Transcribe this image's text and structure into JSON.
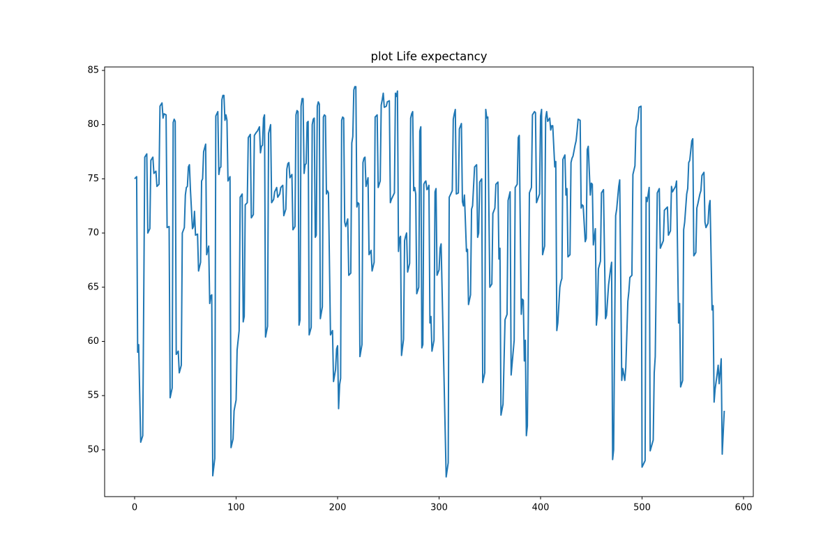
{
  "chart_data": {
    "type": "line",
    "title": "plot Life expectancy",
    "x": [
      0,
      2,
      3,
      4,
      6,
      8,
      10,
      12,
      13,
      15,
      16,
      18,
      19,
      21,
      22,
      24,
      25,
      27,
      28,
      29,
      31,
      32,
      34,
      35,
      37,
      38,
      39,
      40,
      41,
      43,
      44,
      46,
      47,
      49,
      50,
      51,
      52,
      53,
      54,
      55,
      57,
      58,
      59,
      60,
      62,
      63,
      65,
      66,
      67,
      68,
      70,
      71,
      73,
      74,
      75,
      76,
      77,
      79,
      80,
      82,
      83,
      84,
      85,
      86,
      87,
      88,
      89,
      90,
      91,
      92,
      94,
      95,
      97,
      98,
      100,
      101,
      103,
      104,
      106,
      107,
      108,
      109,
      111,
      112,
      114,
      115,
      117,
      118,
      120,
      121,
      123,
      124,
      125,
      126,
      127,
      128,
      129,
      131,
      132,
      134,
      135,
      137,
      138,
      140,
      141,
      143,
      144,
      146,
      147,
      149,
      150,
      151,
      152,
      153,
      155,
      156,
      158,
      159,
      160,
      161,
      162,
      163,
      164,
      165,
      166,
      167,
      168,
      169,
      170,
      171,
      172,
      174,
      175,
      176,
      177,
      178,
      179,
      180,
      181,
      182,
      183,
      185,
      186,
      187,
      188,
      189,
      190,
      191,
      193,
      195,
      196,
      198,
      199,
      200,
      201,
      202,
      203,
      204,
      205,
      206,
      207,
      208,
      210,
      211,
      213,
      214,
      215,
      216,
      217,
      218,
      219,
      220,
      221,
      222,
      224,
      225,
      226,
      227,
      228,
      230,
      231,
      233,
      234,
      236,
      237,
      239,
      240,
      242,
      243,
      244,
      245,
      246,
      248,
      249,
      251,
      252,
      253,
      254,
      256,
      257,
      258,
      259,
      260,
      261,
      262,
      263,
      265,
      266,
      267,
      268,
      269,
      271,
      272,
      273,
      274,
      275,
      276,
      277,
      278,
      280,
      281,
      282,
      283,
      284,
      285,
      286,
      287,
      288,
      289,
      290,
      291,
      292,
      293,
      295,
      296,
      297,
      298,
      300,
      301,
      302,
      307,
      309,
      310,
      313,
      314,
      315,
      316,
      317,
      319,
      320,
      322,
      323,
      324,
      325,
      327,
      328,
      329,
      331,
      332,
      333,
      335,
      337,
      338,
      339,
      340,
      342,
      343,
      345,
      346,
      347,
      348,
      350,
      352,
      353,
      355,
      356,
      358,
      359,
      360,
      361,
      363,
      365,
      367,
      368,
      370,
      371,
      374,
      375,
      377,
      378,
      379,
      381,
      382,
      383,
      384,
      385,
      386,
      387,
      389,
      391,
      392,
      394,
      395,
      396,
      399,
      400,
      401,
      402,
      404,
      405,
      406,
      407,
      409,
      410,
      411,
      412,
      414,
      415,
      416,
      417,
      419,
      420,
      421,
      422,
      424,
      425,
      426,
      427,
      429,
      430,
      431,
      432,
      434,
      435,
      436,
      437,
      439,
      440,
      441,
      442,
      444,
      445,
      446,
      447,
      449,
      450,
      451,
      452,
      454,
      455,
      456,
      457,
      459,
      460,
      462,
      464,
      465,
      466,
      467,
      469,
      470,
      471,
      472,
      474,
      475,
      477,
      478,
      480,
      481,
      483,
      484,
      486,
      487,
      488,
      490,
      491,
      493,
      494,
      496,
      497,
      499,
      500,
      503,
      504,
      505,
      507,
      508,
      511,
      512,
      513,
      515,
      517,
      518,
      521,
      522,
      525,
      526,
      528,
      529,
      530,
      533,
      534,
      536,
      537,
      538,
      540,
      541,
      542,
      544,
      545,
      546,
      547,
      549,
      550,
      551,
      553,
      554,
      555,
      557,
      558,
      559,
      561,
      562,
      563,
      565,
      566,
      567,
      569,
      570,
      571,
      572,
      574,
      575,
      576,
      578,
      579,
      581
    ],
    "values": [
      75.0,
      75.2,
      59.0,
      59.7,
      50.7,
      51.3,
      77.0,
      77.3,
      70.0,
      70.4,
      76.7,
      77.0,
      75.5,
      75.7,
      74.3,
      74.5,
      81.7,
      82.0,
      80.6,
      81.0,
      80.9,
      70.5,
      70.6,
      54.8,
      55.7,
      80.2,
      80.5,
      80.3,
      58.8,
      59.1,
      57.1,
      57.8,
      70.0,
      70.5,
      73.5,
      74.2,
      74.3,
      76.1,
      76.3,
      74.0,
      70.4,
      70.6,
      72.0,
      69.8,
      69.9,
      66.5,
      67.3,
      74.8,
      75.0,
      77.5,
      78.2,
      68.0,
      68.8,
      63.5,
      64.2,
      64.3,
      47.6,
      49.2,
      80.8,
      81.2,
      75.4,
      76.0,
      76.1,
      82.3,
      82.7,
      82.7,
      80.4,
      80.9,
      80.4,
      74.8,
      75.2,
      50.2,
      51.0,
      53.6,
      54.6,
      59.2,
      61.0,
      73.3,
      73.6,
      61.8,
      62.3,
      72.6,
      72.8,
      78.8,
      79.1,
      71.4,
      71.7,
      79.0,
      79.3,
      79.4,
      79.8,
      77.4,
      78.0,
      78.1,
      80.6,
      80.9,
      60.4,
      61.4,
      79.2,
      80.0,
      72.8,
      73.1,
      73.8,
      74.2,
      73.3,
      73.6,
      74.2,
      74.4,
      71.6,
      72.2,
      75.9,
      76.4,
      76.5,
      75.1,
      75.4,
      70.3,
      70.6,
      80.9,
      81.3,
      81.2,
      61.5,
      62.0,
      81.7,
      82.4,
      82.4,
      75.5,
      76.3,
      76.4,
      80.2,
      80.3,
      60.6,
      61.3,
      80.0,
      80.5,
      80.6,
      69.6,
      69.8,
      81.7,
      82.1,
      81.9,
      62.1,
      63.2,
      80.7,
      80.9,
      80.8,
      73.6,
      73.9,
      73.7,
      60.6,
      61.0,
      56.3,
      57.4,
      59.3,
      59.6,
      53.8,
      56.0,
      56.6,
      80.4,
      80.7,
      80.6,
      71.0,
      70.6,
      71.3,
      66.1,
      66.3,
      78.3,
      78.9,
      83.2,
      83.5,
      83.5,
      72.4,
      72.8,
      72.7,
      58.6,
      59.7,
      76.5,
      76.9,
      77.0,
      74.3,
      75.1,
      68.0,
      68.4,
      66.5,
      67.3,
      80.7,
      80.9,
      74.2,
      74.8,
      81.8,
      82.3,
      82.9,
      81.6,
      81.7,
      82.1,
      82.2,
      72.8,
      73.1,
      73.3,
      73.7,
      82.9,
      82.6,
      83.1,
      68.3,
      69.5,
      69.7,
      58.7,
      60.2,
      69.3,
      69.7,
      70.0,
      66.4,
      67.2,
      80.6,
      81.0,
      81.2,
      73.9,
      74.2,
      73.6,
      64.4,
      65.0,
      79.4,
      79.8,
      59.4,
      59.7,
      74.5,
      74.7,
      74.8,
      74.0,
      74.1,
      74.4,
      61.7,
      62.3,
      59.1,
      60.1,
      73.8,
      74.1,
      66.1,
      66.6,
      68.6,
      69.0,
      47.5,
      48.8,
      73.3,
      73.9,
      80.5,
      81.0,
      81.4,
      73.6,
      73.7,
      79.6,
      80.1,
      72.9,
      72.5,
      73.5,
      68.3,
      68.5,
      63.4,
      64.3,
      72.2,
      72.5,
      76.1,
      76.3,
      69.6,
      70.0,
      74.7,
      75.0,
      56.2,
      57.1,
      81.4,
      80.6,
      80.7,
      65.0,
      65.3,
      71.8,
      72.3,
      74.5,
      74.7,
      67.6,
      68.6,
      53.2,
      54.2,
      62.0,
      62.5,
      73.0,
      73.8,
      56.9,
      60.1,
      74.2,
      74.5,
      78.8,
      79.0,
      62.5,
      63.9,
      63.8,
      58.2,
      60.1,
      51.3,
      52.2,
      73.7,
      74.2,
      80.9,
      81.2,
      81.1,
      72.8,
      73.6,
      80.8,
      81.4,
      68.0,
      68.8,
      80.6,
      81.2,
      80.3,
      80.6,
      79.5,
      79.9,
      79.9,
      76.1,
      76.6,
      61.0,
      61.7,
      65.0,
      65.5,
      65.8,
      76.8,
      77.2,
      73.5,
      74.1,
      67.8,
      68.0,
      76.5,
      76.9,
      77.1,
      78.1,
      78.5,
      79.4,
      80.5,
      80.4,
      72.3,
      72.6,
      72.5,
      69.2,
      69.5,
      77.7,
      78.0,
      73.5,
      74.6,
      74.5,
      68.9,
      70.4,
      61.5,
      62.5,
      66.7,
      67.4,
      73.7,
      74.0,
      62.1,
      62.4,
      63.8,
      65.2,
      66.7,
      67.3,
      49.1,
      50.0,
      71.6,
      72.2,
      74.3,
      74.9,
      56.4,
      57.5,
      56.4,
      57.6,
      63.7,
      64.6,
      65.9,
      66.1,
      75.4,
      76.2,
      79.7,
      80.5,
      81.6,
      81.7,
      48.4,
      49.0,
      73.3,
      72.9,
      74.2,
      49.9,
      50.9,
      57.1,
      58.6,
      73.7,
      74.1,
      68.6,
      69.3,
      72.1,
      72.4,
      69.8,
      70.2,
      74.3,
      73.8,
      74.3,
      74.8,
      61.7,
      63.5,
      55.8,
      56.4,
      70.3,
      71.0,
      73.6,
      74.1,
      76.5,
      76.7,
      78.5,
      78.7,
      67.9,
      68.2,
      72.3,
      72.7,
      73.6,
      73.9,
      75.3,
      75.6,
      71.0,
      70.5,
      70.9,
      72.5,
      73.0,
      62.9,
      63.3,
      54.4,
      55.6,
      57.0,
      57.8,
      56.1,
      58.4,
      49.6,
      53.6
    ],
    "color": "#1f77b4",
    "xlim": [
      -29.55,
      609.62
    ],
    "ylim": [
      45.68,
      85.32
    ],
    "xticks": [
      0,
      100,
      200,
      300,
      400,
      500,
      600
    ],
    "yticks": [
      50,
      55,
      60,
      65,
      70,
      75,
      80,
      85
    ],
    "grid": false
  }
}
